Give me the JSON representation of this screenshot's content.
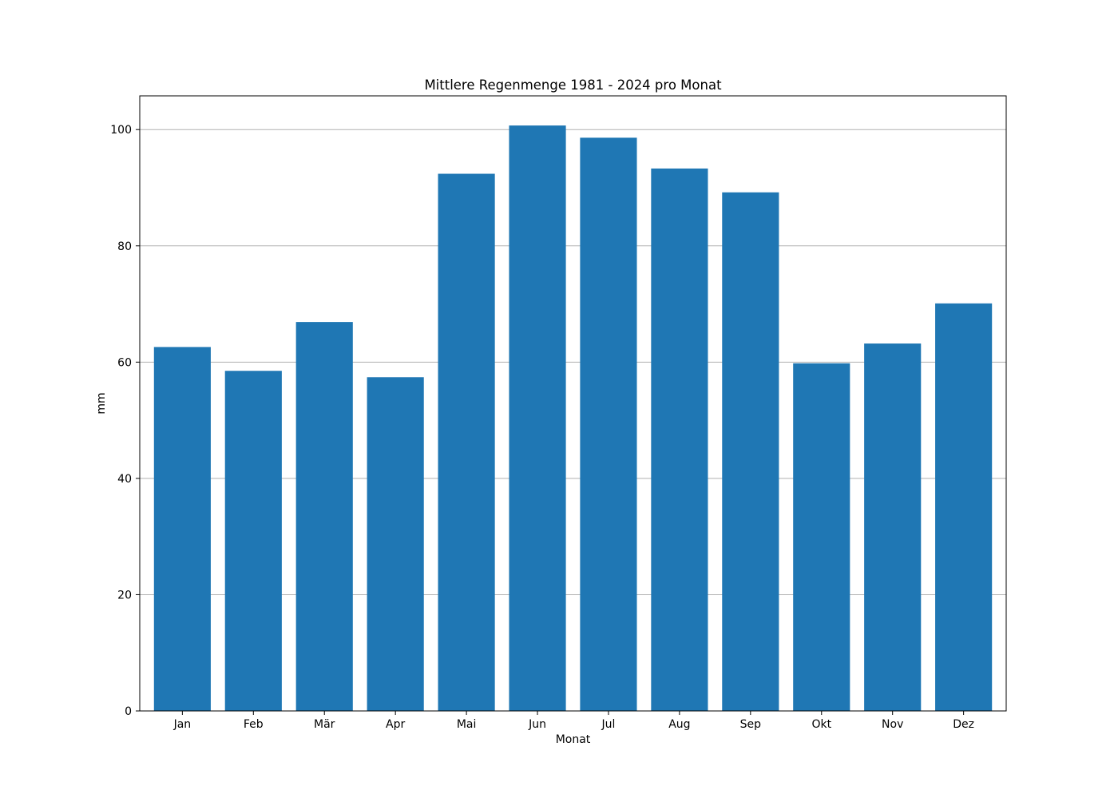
{
  "chart_data": {
    "type": "bar",
    "title": "Mittlere Regenmenge 1981 - 2024 pro Monat",
    "xlabel": "Monat",
    "ylabel": "mm",
    "categories": [
      "Jan",
      "Feb",
      "Mär",
      "Apr",
      "Mai",
      "Jun",
      "Jul",
      "Aug",
      "Sep",
      "Okt",
      "Nov",
      "Dez"
    ],
    "values": [
      62.6,
      58.5,
      66.9,
      57.4,
      92.4,
      100.7,
      98.6,
      93.3,
      89.2,
      59.8,
      63.2,
      70.1
    ],
    "ylim": [
      0,
      105.8
    ],
    "yticks": [
      0,
      20,
      40,
      60,
      80,
      100
    ],
    "ytick_labels": [
      "0",
      "20",
      "40",
      "60",
      "80",
      "100"
    ],
    "grid": "horizontal",
    "bar_color": "#1f77b4",
    "grid_color": "#b0b0b0"
  }
}
